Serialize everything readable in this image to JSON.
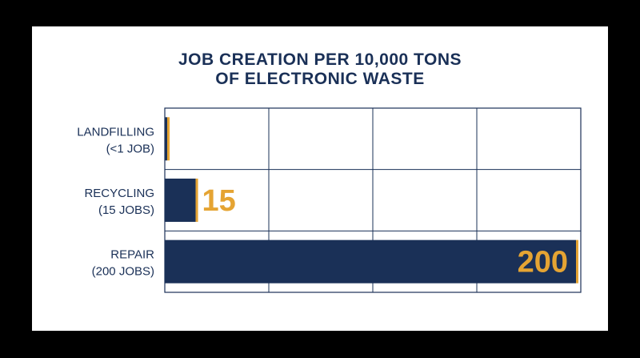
{
  "title_line1": "JOB CREATION PER 10,000 TONS",
  "title_line2": "OF ELECTRONIC WASTE",
  "colors": {
    "bar": "#1a3057",
    "accent": "#e5a433",
    "grid": "#1a3057",
    "background": "#ffffff"
  },
  "chart_data": {
    "type": "bar",
    "orientation": "horizontal",
    "title": "JOB CREATION PER 10,000 TONS OF ELECTRONIC WASTE",
    "categories": [
      "LANDFILLING",
      "RECYCLING",
      "REPAIR"
    ],
    "category_sublabels": [
      "(<1 JOB)",
      "(15 JOBS)",
      "(200 JOBS)"
    ],
    "values": [
      1,
      15,
      200
    ],
    "value_labels": [
      "",
      "15",
      "200"
    ],
    "xlim": [
      0,
      200
    ],
    "grid": true,
    "vertical_gridlines": 4
  }
}
